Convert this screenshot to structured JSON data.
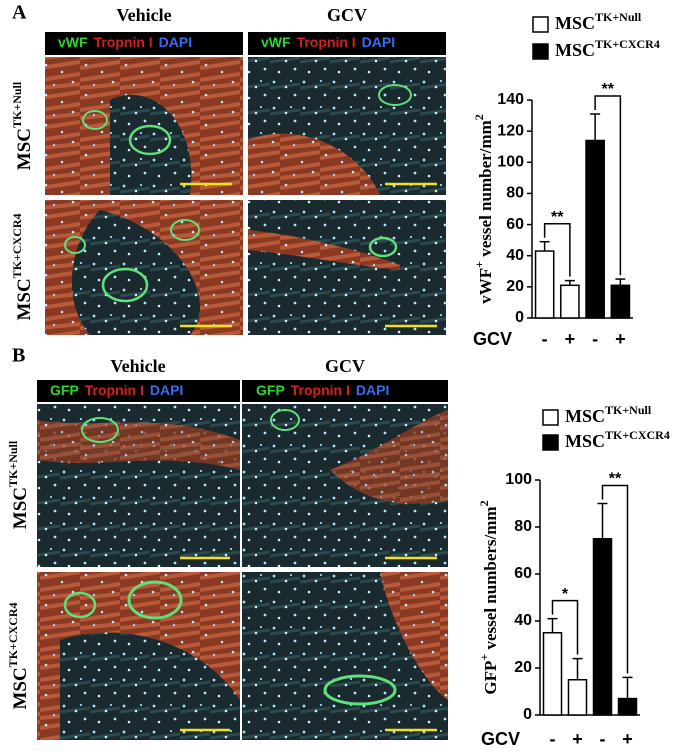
{
  "panels": [
    {
      "label": "A",
      "columns": [
        "Vehicle",
        "GCV"
      ],
      "stains": [
        {
          "text": "vWF",
          "color": "#2fd62f"
        },
        {
          "text": "Tropnin I",
          "color": "#d42020"
        },
        {
          "text": "DAPI",
          "color": "#3a6cf0"
        }
      ],
      "rows": [
        {
          "base": "MSC",
          "sup": "TK+Null"
        },
        {
          "base": "MSC",
          "sup": "TK+CXCR4"
        }
      ]
    },
    {
      "label": "B",
      "columns": [
        "Vehicle",
        "GCV"
      ],
      "stains": [
        {
          "text": "GFP",
          "color": "#2fd62f"
        },
        {
          "text": "Tropnin I",
          "color": "#d42020"
        },
        {
          "text": "DAPI",
          "color": "#3a6cf0"
        }
      ],
      "rows": [
        {
          "base": "MSC",
          "sup": "TK+Null"
        },
        {
          "base": "MSC",
          "sup": "TK+CXCR4"
        }
      ]
    }
  ],
  "chart_data": [
    {
      "type": "bar",
      "ylabel": [
        {
          "text": "vWF"
        },
        {
          "text": "+",
          "sup": true
        },
        {
          "text": " vessel number/mm"
        },
        {
          "text": "2",
          "sup": true
        }
      ],
      "xlabel": "GCV",
      "categories": [
        "-",
        "+",
        "-",
        "+"
      ],
      "series": [
        {
          "name": "MSC",
          "name_sup": "TK+Null",
          "color": "#ffffff",
          "values": [
            43,
            21,
            null,
            null
          ],
          "errors": [
            6,
            3,
            null,
            null
          ]
        },
        {
          "name": "MSC",
          "name_sup": "TK+CXCR4",
          "color": "#000000",
          "values": [
            null,
            null,
            114,
            21
          ],
          "errors": [
            null,
            null,
            17,
            4
          ]
        }
      ],
      "annotations": [
        {
          "text": "**",
          "between": [
            0,
            1
          ]
        },
        {
          "text": "**",
          "between": [
            2,
            3
          ]
        }
      ],
      "ylim": [
        0,
        140
      ],
      "yticks": [
        0,
        20,
        40,
        60,
        80,
        100,
        120,
        140
      ]
    },
    {
      "type": "bar",
      "ylabel": [
        {
          "text": "GFP"
        },
        {
          "text": "+",
          "sup": true
        },
        {
          "text": " vessel numbers/mm"
        },
        {
          "text": "2",
          "sup": true
        }
      ],
      "xlabel": "GCV",
      "categories": [
        "-",
        "+",
        "-",
        "+"
      ],
      "series": [
        {
          "name": "MSC",
          "name_sup": "TK+Null",
          "color": "#ffffff",
          "values": [
            35,
            15,
            null,
            null
          ],
          "errors": [
            6,
            9,
            null,
            null
          ]
        },
        {
          "name": "MSC",
          "name_sup": "TK+CXCR4",
          "color": "#000000",
          "values": [
            null,
            null,
            75,
            7
          ],
          "errors": [
            null,
            null,
            15,
            9
          ]
        }
      ],
      "annotations": [
        {
          "text": "*",
          "between": [
            0,
            1
          ]
        },
        {
          "text": "**",
          "between": [
            2,
            3
          ]
        }
      ],
      "ylim": [
        0,
        100
      ],
      "yticks": [
        0,
        20,
        40,
        60,
        80,
        100
      ]
    }
  ]
}
